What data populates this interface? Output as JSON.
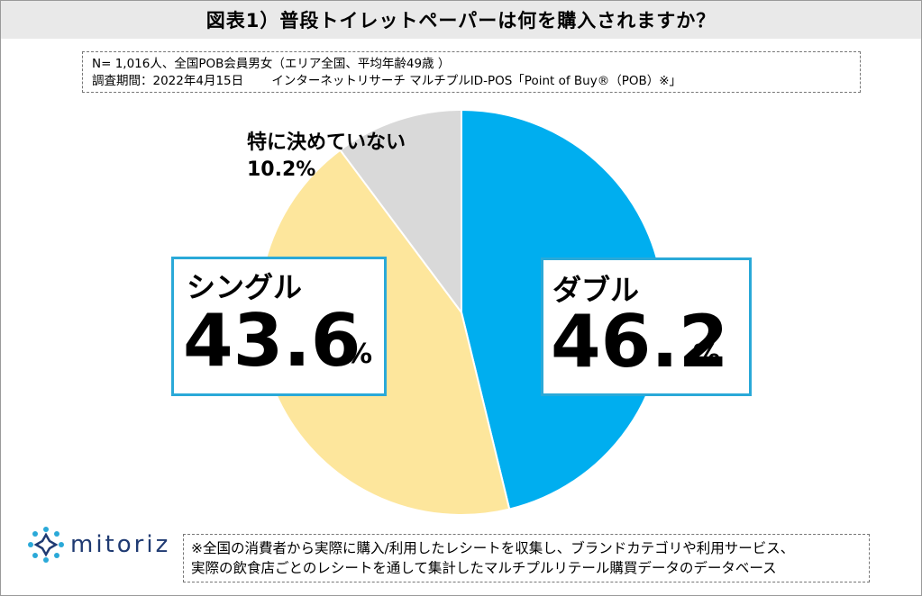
{
  "title": "図表1）普段トイレットペーパーは何を購入されますか？",
  "notes": {
    "line1": "N= 1,016人、全国POB会員男女（エリア全国、平均年齢49歳 ）",
    "line2": "調査期間：2022年4月15日　　 インターネットリサーチ マルチプルID-POS「Point of Buy®（POB）※」"
  },
  "chart_data": {
    "type": "pie",
    "title": "",
    "slices": [
      {
        "label": "ダブル",
        "value": 46.2,
        "color": "#00aeef"
      },
      {
        "label": "シングル",
        "value": 43.6,
        "color": "#fde69c"
      },
      {
        "label": "特に決めていない",
        "value": 10.2,
        "color": "#d9d9d9"
      }
    ],
    "start": "12 o'clock",
    "direction": "clockwise"
  },
  "labels": {
    "double_name": "ダブル",
    "double_value": "46.2",
    "single_name": "シングル",
    "single_value": "43.6",
    "percent_sign": "%",
    "none_name": "特に決めていない",
    "none_value": "10.2%"
  },
  "logo": {
    "text": "mitoriz"
  },
  "footnote": {
    "line1": "※全国の消費者から実際に購入/利用したレシートを収集し、ブランドカテゴリや利用サービス、",
    "line2": "実際の飲食店ごとのレシートを通して集計したマルチプルリテール購買データのデータベース"
  },
  "colors": {
    "accent": "#2aa9d8",
    "double": "#00aeef",
    "single": "#fde69c",
    "none": "#d9d9d9",
    "logo": "#1f3a72"
  }
}
